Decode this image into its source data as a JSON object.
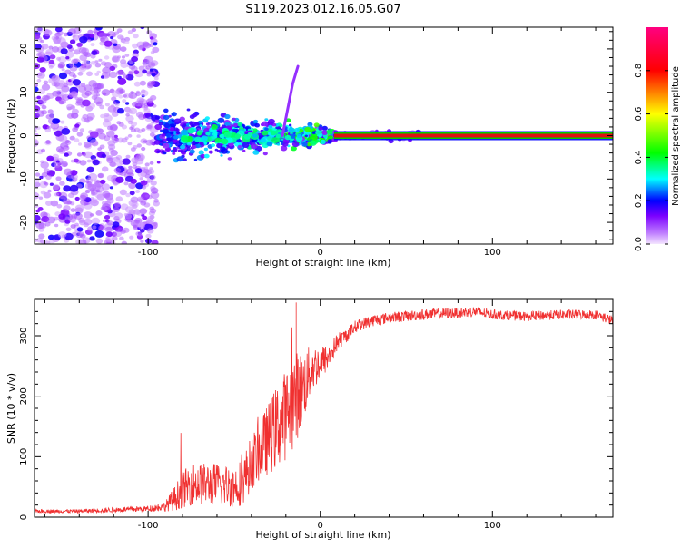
{
  "title": "S119.2023.012.16.05.G07",
  "chart_data": [
    {
      "type": "heatmap",
      "xlabel": "Height of straight line (km)",
      "ylabel": "Frequency (Hz)",
      "xlim": [
        -166,
        170
      ],
      "ylim": [
        -25,
        25
      ],
      "x_ticks": [
        -100,
        0,
        100
      ],
      "y_ticks": [
        -20,
        -10,
        0,
        10,
        20
      ],
      "colorbar": {
        "label": "Normalized spectral amplitude",
        "range": [
          0,
          1
        ],
        "ticks": [
          0.0,
          0.2,
          0.4,
          0.6,
          0.8
        ],
        "tick_labels": [
          "0.0",
          "0.2",
          "0.4",
          "0.6",
          "0.8"
        ],
        "colors": [
          "#f4e6ff",
          "#7b00ff",
          "#0000ff",
          "#00ffff",
          "#00ff00",
          "#ffff00",
          "#ff0000",
          "#ff0080"
        ]
      },
      "carrier_line": {
        "frequency_hz": 0,
        "x_start_km": 8,
        "x_end_km": 170,
        "amplitude": 0.9
      },
      "noise_region": {
        "x_range_km": [
          -166,
          -95
        ],
        "frequency_range_hz": [
          -25,
          25
        ],
        "amplitude_range": [
          0.05,
          0.2
        ]
      },
      "transition_region": {
        "x_range_km": [
          -95,
          8
        ],
        "frequency_spread_hz": 6,
        "amplitude_range": [
          0.1,
          0.35
        ]
      },
      "streak": {
        "points": [
          [
            -22,
            0
          ],
          [
            -16,
            12
          ],
          [
            -13,
            16
          ]
        ]
      }
    },
    {
      "type": "line",
      "xlabel": "Height of straight line (km)",
      "ylabel": "SNR (10 * v/v)",
      "xlim": [
        -166,
        170
      ],
      "ylim": [
        0,
        360
      ],
      "x_ticks": [
        -100,
        0,
        100
      ],
      "y_ticks": [
        0,
        100,
        200,
        300
      ],
      "color": "#f03030",
      "x": [
        -166,
        -140,
        -120,
        -100,
        -90,
        -85,
        -80,
        -75,
        -70,
        -60,
        -50,
        -45,
        -40,
        -35,
        -30,
        -25,
        -20,
        -15,
        -10,
        -5,
        0,
        5,
        10,
        15,
        20,
        30,
        40,
        60,
        80,
        90,
        100,
        120,
        140,
        160,
        170
      ],
      "y": [
        10,
        10,
        12,
        14,
        18,
        30,
        45,
        55,
        55,
        55,
        50,
        60,
        90,
        110,
        130,
        150,
        170,
        195,
        215,
        245,
        255,
        265,
        290,
        300,
        315,
        325,
        330,
        335,
        338,
        340,
        335,
        332,
        335,
        335,
        325
      ],
      "noise_amplitude": [
        3,
        3,
        4,
        5,
        8,
        20,
        30,
        35,
        35,
        35,
        35,
        40,
        45,
        50,
        60,
        70,
        75,
        80,
        60,
        40,
        30,
        20,
        15,
        12,
        10,
        10,
        9,
        9,
        9,
        9,
        8,
        8,
        8,
        8,
        8
      ],
      "annotations": {
        "peak_km": -14,
        "peak_snr": 355
      }
    }
  ]
}
